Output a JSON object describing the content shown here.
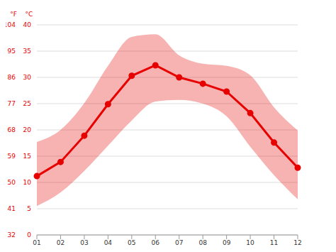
{
  "chart_data": {
    "type": "line",
    "categories": [
      "01",
      "02",
      "03",
      "04",
      "05",
      "06",
      "07",
      "08",
      "09",
      "10",
      "11",
      "12"
    ],
    "values": [
      11.2,
      13.9,
      18.9,
      24.9,
      30.3,
      32.3,
      30.0,
      28.8,
      27.3,
      23.2,
      17.6,
      12.8
    ],
    "low": [
      5.5,
      8.1,
      12.2,
      17.0,
      21.8,
      25.4,
      25.7,
      25.0,
      22.6,
      16.8,
      11.4,
      6.8
    ],
    "high": [
      17.7,
      20.0,
      25.1,
      32.2,
      37.7,
      38.2,
      34.2,
      32.6,
      32.2,
      30.4,
      24.3,
      19.9
    ],
    "color": "#e60000",
    "y_label": "°C",
    "ylim": [
      0,
      40
    ],
    "yticks": [
      0,
      5,
      10,
      15,
      20,
      25,
      30,
      35,
      40
    ],
    "y2_label": "°F",
    "y2lim": [
      32,
      104
    ],
    "y2ticks": [
      32,
      41,
      50,
      59,
      68,
      77,
      86,
      95,
      104
    ],
    "grid": true,
    "marker": "circle"
  }
}
